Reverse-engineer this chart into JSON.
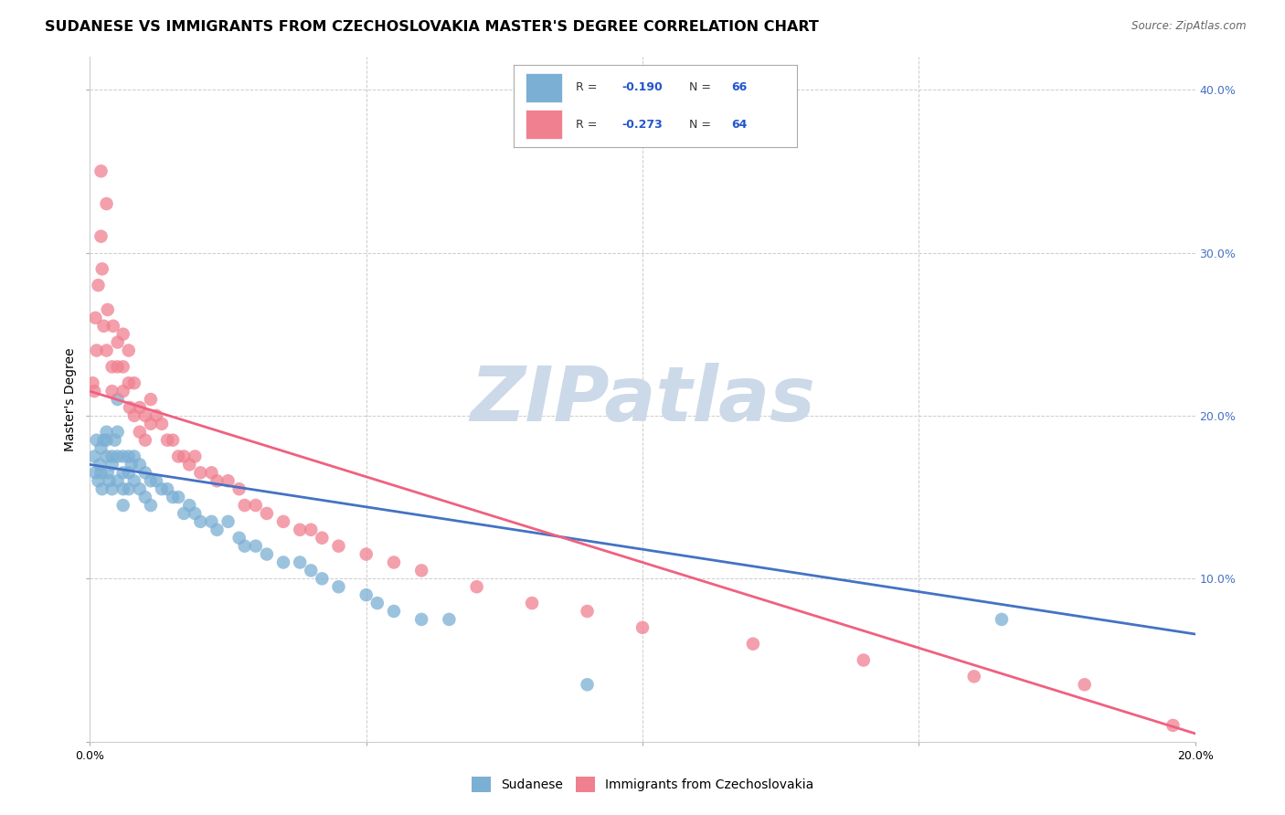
{
  "title": "SUDANESE VS IMMIGRANTS FROM CZECHOSLOVAKIA MASTER'S DEGREE CORRELATION CHART",
  "source": "Source: ZipAtlas.com",
  "ylabel": "Master's Degree",
  "xlim": [
    0.0,
    0.2
  ],
  "ylim": [
    0.0,
    0.42
  ],
  "x_ticks": [
    0.0,
    0.05,
    0.1,
    0.15,
    0.2
  ],
  "x_tick_labels": [
    "0.0%",
    "",
    "",
    "",
    "20.0%"
  ],
  "y_ticks": [
    0.0,
    0.1,
    0.2,
    0.3,
    0.4
  ],
  "y_tick_labels_right": [
    "",
    "10.0%",
    "20.0%",
    "30.0%",
    "40.0%"
  ],
  "sudanese_color": "#7bafd4",
  "czech_color": "#f08090",
  "trend_sudanese_color": "#4472c4",
  "trend_czech_color": "#f06080",
  "watermark": "ZIPatlas",
  "watermark_color": "#ccd9e8",
  "watermark_fontsize": 60,
  "background_color": "#ffffff",
  "grid_color": "#cccccc",
  "title_fontsize": 11.5,
  "axis_label_fontsize": 10,
  "tick_fontsize": 9,
  "legend_text_color": "#2255cc",
  "legend_r_color": "#2255cc",
  "legend_n_color": "#2255cc",
  "sudanese_x": [
    0.0008,
    0.001,
    0.0012,
    0.0015,
    0.0018,
    0.002,
    0.002,
    0.0022,
    0.0025,
    0.003,
    0.003,
    0.003,
    0.0032,
    0.0035,
    0.004,
    0.004,
    0.004,
    0.0045,
    0.005,
    0.005,
    0.005,
    0.005,
    0.006,
    0.006,
    0.006,
    0.006,
    0.007,
    0.007,
    0.007,
    0.0075,
    0.008,
    0.008,
    0.009,
    0.009,
    0.01,
    0.01,
    0.011,
    0.011,
    0.012,
    0.013,
    0.014,
    0.015,
    0.016,
    0.017,
    0.018,
    0.019,
    0.02,
    0.022,
    0.023,
    0.025,
    0.027,
    0.028,
    0.03,
    0.032,
    0.035,
    0.038,
    0.04,
    0.042,
    0.045,
    0.05,
    0.052,
    0.055,
    0.06,
    0.065,
    0.09,
    0.165
  ],
  "sudanese_y": [
    0.175,
    0.165,
    0.185,
    0.16,
    0.17,
    0.18,
    0.165,
    0.155,
    0.185,
    0.19,
    0.185,
    0.175,
    0.165,
    0.16,
    0.175,
    0.17,
    0.155,
    0.185,
    0.21,
    0.19,
    0.175,
    0.16,
    0.175,
    0.165,
    0.155,
    0.145,
    0.175,
    0.165,
    0.155,
    0.17,
    0.175,
    0.16,
    0.17,
    0.155,
    0.165,
    0.15,
    0.16,
    0.145,
    0.16,
    0.155,
    0.155,
    0.15,
    0.15,
    0.14,
    0.145,
    0.14,
    0.135,
    0.135,
    0.13,
    0.135,
    0.125,
    0.12,
    0.12,
    0.115,
    0.11,
    0.11,
    0.105,
    0.1,
    0.095,
    0.09,
    0.085,
    0.08,
    0.075,
    0.075,
    0.035,
    0.075
  ],
  "czech_x": [
    0.0005,
    0.0008,
    0.001,
    0.0012,
    0.0015,
    0.002,
    0.002,
    0.0022,
    0.0025,
    0.003,
    0.003,
    0.0032,
    0.004,
    0.004,
    0.0042,
    0.005,
    0.005,
    0.006,
    0.006,
    0.006,
    0.007,
    0.007,
    0.0072,
    0.008,
    0.008,
    0.009,
    0.009,
    0.01,
    0.01,
    0.011,
    0.011,
    0.012,
    0.013,
    0.014,
    0.015,
    0.016,
    0.017,
    0.018,
    0.019,
    0.02,
    0.022,
    0.023,
    0.025,
    0.027,
    0.028,
    0.03,
    0.032,
    0.035,
    0.038,
    0.04,
    0.042,
    0.045,
    0.05,
    0.055,
    0.06,
    0.07,
    0.08,
    0.09,
    0.1,
    0.12,
    0.14,
    0.16,
    0.18,
    0.196
  ],
  "czech_y": [
    0.22,
    0.215,
    0.26,
    0.24,
    0.28,
    0.35,
    0.31,
    0.29,
    0.255,
    0.33,
    0.24,
    0.265,
    0.23,
    0.215,
    0.255,
    0.245,
    0.23,
    0.25,
    0.23,
    0.215,
    0.24,
    0.22,
    0.205,
    0.22,
    0.2,
    0.205,
    0.19,
    0.2,
    0.185,
    0.21,
    0.195,
    0.2,
    0.195,
    0.185,
    0.185,
    0.175,
    0.175,
    0.17,
    0.175,
    0.165,
    0.165,
    0.16,
    0.16,
    0.155,
    0.145,
    0.145,
    0.14,
    0.135,
    0.13,
    0.13,
    0.125,
    0.12,
    0.115,
    0.11,
    0.105,
    0.095,
    0.085,
    0.08,
    0.07,
    0.06,
    0.05,
    0.04,
    0.035,
    0.01
  ],
  "trend_sudanese_intercept": 0.17,
  "trend_sudanese_slope": -0.52,
  "trend_czech_intercept": 0.215,
  "trend_czech_slope": -1.05
}
